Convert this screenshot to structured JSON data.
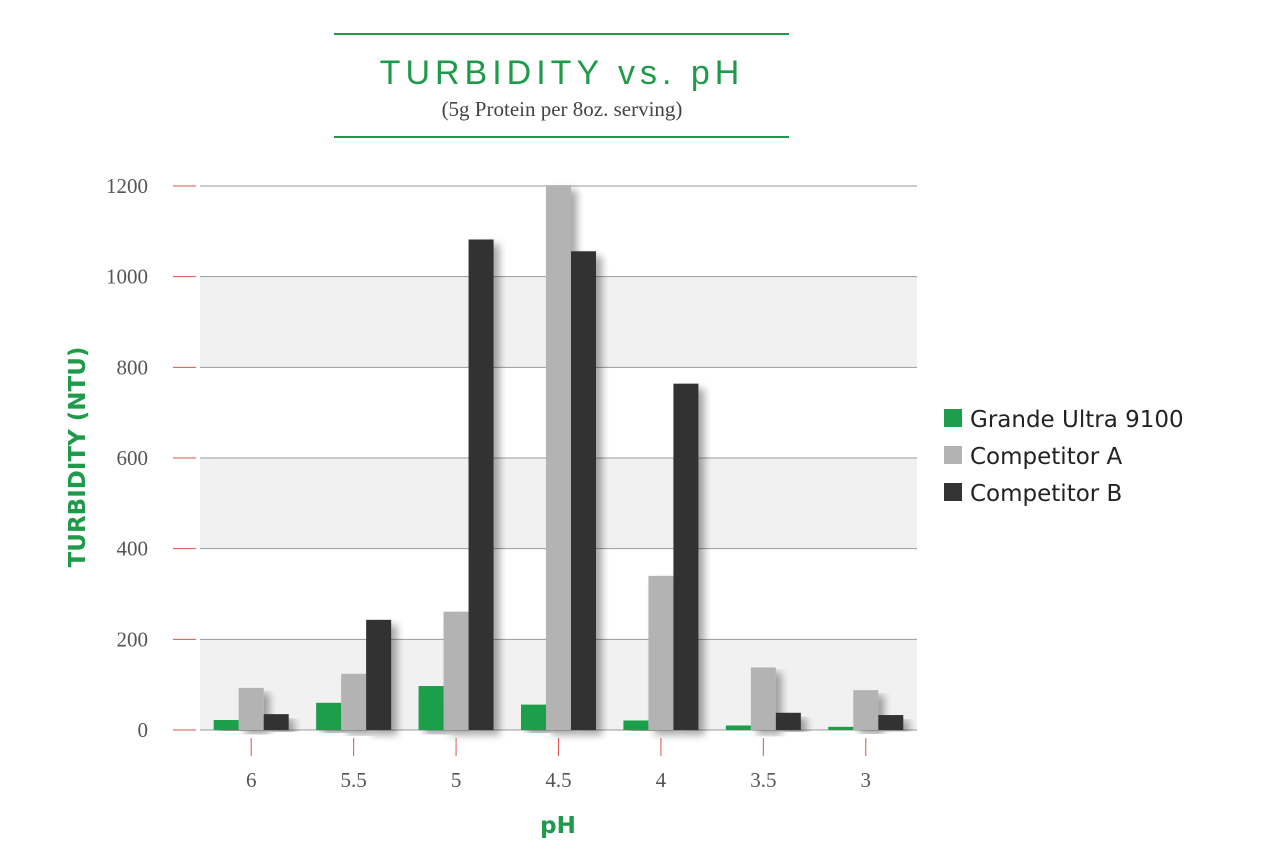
{
  "chart_data": {
    "type": "bar",
    "title": "TURBIDITY vs. pH",
    "subtitle": "(5g Protein per 8oz. serving)",
    "xlabel": "pH",
    "ylabel": "TURBIDITY (NTU)",
    "categories": [
      "6",
      "5.5",
      "5",
      "4.5",
      "4",
      "3.5",
      "3"
    ],
    "y_ticks": [
      "0",
      "200",
      "400",
      "600",
      "800",
      "1000",
      "1200"
    ],
    "ylim": [
      0,
      1200
    ],
    "grid": true,
    "legend_position": "right",
    "series": [
      {
        "name": "Grande Ultra 9100",
        "color": "#1e9e4c",
        "values": [
          22,
          60,
          97,
          56,
          21,
          10,
          7
        ]
      },
      {
        "name": "Competitor A",
        "color": "#b3b3b3",
        "values": [
          93,
          124,
          261,
          1202,
          340,
          138,
          88
        ]
      },
      {
        "name": "Competitor B",
        "color": "#333333",
        "values": [
          35,
          243,
          1082,
          1056,
          764,
          38,
          33
        ]
      }
    ]
  }
}
